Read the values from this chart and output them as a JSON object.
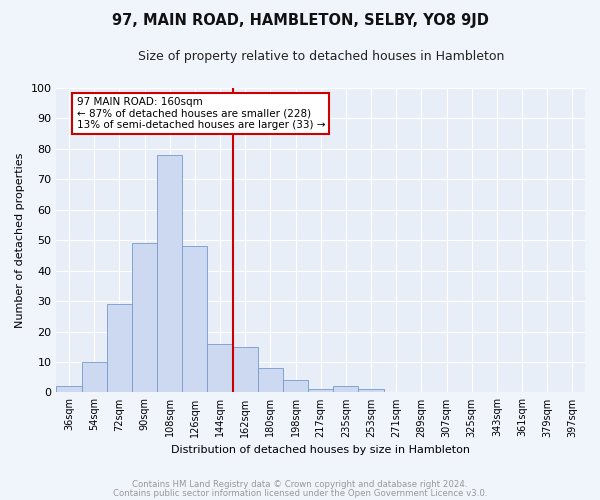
{
  "title": "97, MAIN ROAD, HAMBLETON, SELBY, YO8 9JD",
  "subtitle": "Size of property relative to detached houses in Hambleton",
  "xlabel": "Distribution of detached houses by size in Hambleton",
  "ylabel": "Number of detached properties",
  "footnote1": "Contains HM Land Registry data © Crown copyright and database right 2024.",
  "footnote2": "Contains public sector information licensed under the Open Government Licence v3.0.",
  "bin_labels": [
    "36sqm",
    "54sqm",
    "72sqm",
    "90sqm",
    "108sqm",
    "126sqm",
    "144sqm",
    "162sqm",
    "180sqm",
    "198sqm",
    "217sqm",
    "235sqm",
    "253sqm",
    "271sqm",
    "289sqm",
    "307sqm",
    "325sqm",
    "343sqm",
    "361sqm",
    "379sqm",
    "397sqm"
  ],
  "bar_values": [
    2,
    10,
    29,
    49,
    78,
    48,
    16,
    15,
    8,
    4,
    1,
    2,
    1,
    0,
    0,
    0,
    0,
    0,
    0,
    0,
    0
  ],
  "bar_color": "#ccd9f0",
  "bar_edge_color": "#7799cc",
  "vline_color": "#cc0000",
  "annotation_text": "97 MAIN ROAD: 160sqm\n← 87% of detached houses are smaller (228)\n13% of semi-detached houses are larger (33) →",
  "annotation_box_color": "#ffffff",
  "annotation_box_edge_color": "#cc0000",
  "ylim": [
    0,
    100
  ],
  "fig_bg": "#f0f4fb",
  "plot_bg": "#e8eef8",
  "grid_color": "#ffffff",
  "title_fontsize": 10.5,
  "subtitle_fontsize": 9,
  "footnote_color": "#999999"
}
